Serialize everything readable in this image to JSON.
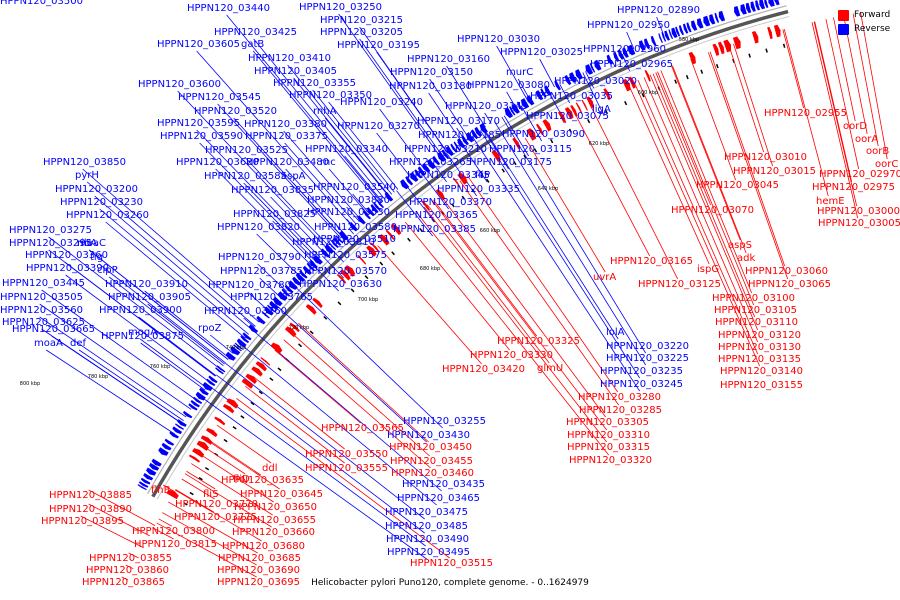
{
  "caption": "Helicobacter pylori Puno120, complete genome. - 0..1624979",
  "legend": [
    {
      "label": "Forward",
      "color": "#ff0000"
    },
    {
      "label": "Reverse",
      "color": "#0000ff"
    }
  ],
  "colors": {
    "forward": "#ff0000",
    "reverse": "#0000ff",
    "backbone": "#555555"
  },
  "ticks": [
    "580 kbp",
    "600 kbp",
    "620 kbp",
    "640 kbp",
    "660 kbp",
    "680 kbp",
    "700 kbp",
    "720 kbp",
    "740 kbp",
    "760 kbp",
    "780 kbp",
    "800 kbp"
  ],
  "reverse_labels": [
    "HPPN120_02890",
    "HPPN120_03250",
    "HPPN120_03440",
    "HPPN120_03215",
    "HPPN120_03425",
    "HPPN120_03205",
    "HPPN120_03195",
    "HPPN120_02950",
    "HPPN120_03030",
    "HPPN120_03025",
    "HPPN120_02960",
    "gatB",
    "HPPN120_03605",
    "HPPN120_03410",
    "HPPN120_03160",
    "HPPN120_02965",
    "HPPN120_03405",
    "HPPN120_03150",
    "murC",
    "HPPN120_03020",
    "HPPN120_03355",
    "HPPN120_03600",
    "HPPN120_03180",
    "HPPN120_03080",
    "HPPN120_03545",
    "HPPN120_03350",
    "HPPN120_03035",
    "HPPN120_03240",
    "HPPN120_03145",
    "ligA",
    "HPPN120_03520",
    "rnhA",
    "HPPN120_03595",
    "HPPN120_03380",
    "HPPN120_03075",
    "HPPN120_03270",
    "HPPN120_03170",
    "HPPN120_03590",
    "HPPN120_03375",
    "HPPN120_03185",
    "HPPN120_03090",
    "HPPN120_03525",
    "HPPN120_03340",
    "HPPN120_03210",
    "HPPN120_03115",
    "HPPN120_03850",
    "HPPN120_03620",
    "HPPN120_03480",
    "rnc",
    "HPPN120_03265",
    "HPPN120_03175",
    "pyrH",
    "HPPN120_03585",
    "aspA",
    "HPPN120_03345",
    "fliP",
    "HPPN120_03200",
    "HPPN120_03835",
    "HPPN120_03540",
    "HPPN120_03335",
    "HPPN120_03230",
    "HPPN120_03830",
    "HPPN120_03370",
    "HPPN120_03260",
    "HPPN120_03825",
    "HPPN120_03530",
    "HPPN120_03365",
    "HPPN120_03275",
    "ribA",
    "HPPN120_03820",
    "HPPN120_03580",
    "HPPN120_03385",
    "HPPN120_03295",
    "moaC",
    "HPPN120_03810",
    "HPPN120_03510",
    "HPPN120_03360",
    "tig",
    "HPPN120_03790",
    "HPPN120_03575",
    "HPPN120_03390",
    "clpP",
    "HPPN120_03785",
    "HPPN120_03570",
    "HPPN120_03445",
    "HPPN120_03910",
    "HPPN120_03780",
    "HPPN120_03630",
    "HPPN120_03505",
    "HPPN120_03905",
    "HPPN120_03765",
    "HPPN120_03560",
    "HPPN120_03900",
    "HPPN120_03760",
    "HPPN120_03625",
    "HPPN120_03875",
    "rpoZ",
    "HPPN120_03665",
    "mogA",
    "moaA",
    "def",
    "lolA",
    "HPPN120_03220",
    "HPPN120_03225",
    "HPPN120_03235",
    "HPPN120_03245",
    "HPPN120_03255",
    "HPPN120_03430",
    "HPPN120_03435",
    "HPPN120_03465",
    "HPPN120_03475",
    "HPPN120_03485",
    "HPPN120_03490",
    "HPPN120_03495",
    "HPPN120_03500"
  ],
  "forward_labels": [
    "HPPN120_02955",
    "oorD",
    "oorA",
    "oorB",
    "oorC",
    "HPPN120_03010",
    "HPPN120_02970",
    "HPPN120_03015",
    "HPPN120_02975",
    "HPPN120_03045",
    "hemE",
    "HPPN120_03000",
    "HPPN120_03070",
    "HPPN120_03005",
    "aspS",
    "adk",
    "HPPN120_03060",
    "HPPN120_03165",
    "ispG",
    "HPPN120_03065",
    "uvrA",
    "HPPN120_03125",
    "HPPN120_03100",
    "HPPN120_03105",
    "HPPN120_03110",
    "HPPN120_03120",
    "HPPN120_03130",
    "HPPN120_03135",
    "HPPN120_03140",
    "HPPN120_03155",
    "HPPN120_03325",
    "HPPN120_03330",
    "glmU",
    "HPPN120_03420",
    "HPPN120_03280",
    "HPPN120_03285",
    "HPPN120_03305",
    "HPPN120_03310",
    "HPPN120_03315",
    "HPPN120_03320",
    "HPPN120_03565",
    "HPPN120_03550",
    "HPPN120_03450",
    "HPPN120_03555",
    "HPPN120_03455",
    "HPPN120_03460",
    "ddl",
    "fliD",
    "HPPN120_03635",
    "HPPN120_03645",
    "fliS",
    "HPPN120_03650",
    "HPPN120_03770",
    "HPPN120_03655",
    "flhB",
    "HPPN120_03775",
    "HPPN120_03660",
    "HPPN120_03885",
    "HPPN120_03800",
    "HPPN120_03890",
    "HPPN120_03815",
    "HPPN120_03680",
    "HPPN120_03895",
    "HPPN120_03855",
    "HPPN120_03685",
    "HPPN120_03860",
    "HPPN120_03690",
    "HPPN120_03865",
    "HPPN120_03695",
    "HPPN120_03515"
  ]
}
